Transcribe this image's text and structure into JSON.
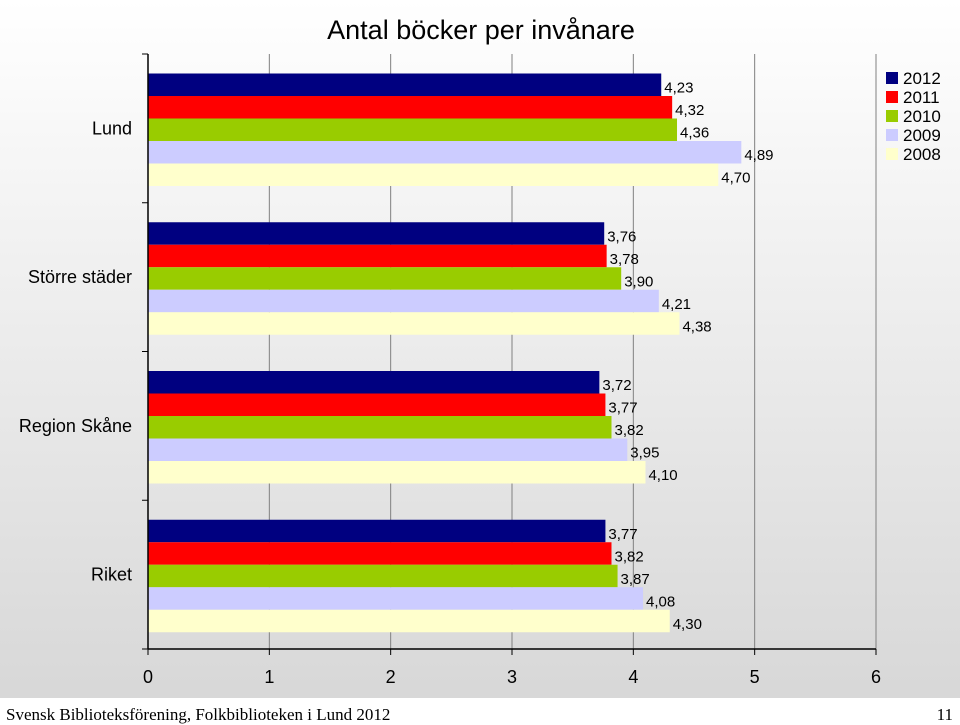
{
  "chart_data": {
    "type": "bar",
    "orientation": "horizontal",
    "title": "Antal böcker per invånare",
    "xlabel": "",
    "ylabel": "",
    "xlim": [
      0,
      6
    ],
    "x_ticks": [
      "0",
      "1",
      "2",
      "3",
      "4",
      "5",
      "6"
    ],
    "grid": true,
    "legend_position": "top-right",
    "categories": [
      "Lund",
      "Större städer",
      "Region Skåne",
      "Riket"
    ],
    "series": [
      {
        "name": "2012",
        "color": "#000080",
        "values": [
          4.23,
          3.76,
          3.72,
          3.77
        ],
        "labels": [
          "4,23",
          "3,76",
          "3,72",
          "3,77"
        ]
      },
      {
        "name": "2011",
        "color": "#FF0000",
        "values": [
          4.32,
          3.78,
          3.77,
          3.82
        ],
        "labels": [
          "4,32",
          "3,78",
          "3,77",
          "3,82"
        ]
      },
      {
        "name": "2010",
        "color": "#99CC00",
        "values": [
          4.36,
          3.9,
          3.82,
          3.87
        ],
        "labels": [
          "4,36",
          "3,90",
          "3,82",
          "3,87"
        ]
      },
      {
        "name": "2009",
        "color": "#CCCCFF",
        "values": [
          4.89,
          4.21,
          3.95,
          4.08
        ],
        "labels": [
          "4,89",
          "4,21",
          "3,95",
          "4,08"
        ]
      },
      {
        "name": "2008",
        "color": "#FFFFCC",
        "values": [
          4.7,
          4.38,
          4.1,
          4.3
        ],
        "labels": [
          "4,70",
          "4,38",
          "4,10",
          "4,30"
        ]
      }
    ]
  },
  "footer": {
    "source": "Svensk Biblioteksförening, Folkbiblioteken i Lund 2012",
    "page_number": "11"
  }
}
